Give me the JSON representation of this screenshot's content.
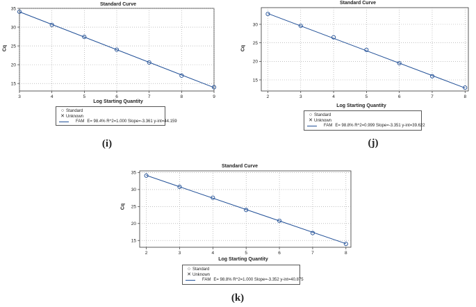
{
  "chart_data": [
    {
      "type": "scatter",
      "title": "Standard Curve",
      "xlabel": "Log Starting Quantity",
      "ylabel": "Cq",
      "xlim": [
        3,
        9
      ],
      "ylim": [
        13,
        35
      ],
      "xticks": [
        "3",
        "4",
        "5",
        "6",
        "7",
        "8",
        "9"
      ],
      "yticks": [
        "15",
        "20",
        "25",
        "30",
        "35"
      ],
      "grid": true,
      "series": [
        {
          "name": "Standard",
          "marker": "circle",
          "x": [
            3,
            4,
            5,
            6,
            7,
            8,
            9
          ],
          "y": [
            34.1,
            30.6,
            27.4,
            24.0,
            20.6,
            17.1,
            14.0
          ]
        }
      ],
      "fit": {
        "slope": -3.361,
        "intercept": 44.159
      },
      "legend": {
        "standard": "Standard",
        "unknown": "Unknown",
        "series": "FAM",
        "equation": "E= 98.4% R^2=1.000 Slope=-3.361 y-int=44.159"
      },
      "panel_label": "(i)"
    },
    {
      "type": "scatter",
      "title": "Standard Curve",
      "xlabel": "Log Starting Quantity",
      "ylabel": "Cq",
      "xlim": [
        1.8,
        8.1
      ],
      "ylim": [
        12,
        34.5
      ],
      "xticks": [
        "2",
        "3",
        "4",
        "5",
        "6",
        "7",
        "8"
      ],
      "yticks": [
        "15",
        "20",
        "25",
        "30"
      ],
      "grid": true,
      "series": [
        {
          "name": "Standard",
          "marker": "circle",
          "x": [
            2,
            3,
            4,
            5,
            6,
            7,
            8
          ],
          "y": [
            32.8,
            29.6,
            26.5,
            23.1,
            19.5,
            16.0,
            12.9
          ]
        }
      ],
      "fit": {
        "slope": -3.351,
        "intercept": 39.622
      },
      "legend": {
        "standard": "Standard",
        "unknown": "Unknown",
        "series": "FAM",
        "equation": "E= 98.8% R^2=0.999 Slope=-3.351 y-int=39.622"
      },
      "panel_label": "(j)"
    },
    {
      "type": "scatter",
      "title": "Standard Curve",
      "xlabel": "Log Starting Quantity",
      "ylabel": "Cq",
      "xlim": [
        1.8,
        8.15
      ],
      "ylim": [
        13,
        35.5
      ],
      "xticks": [
        "2",
        "3",
        "4",
        "5",
        "6",
        "7",
        "8"
      ],
      "yticks": [
        "15",
        "20",
        "25",
        "30",
        "35"
      ],
      "grid": true,
      "series": [
        {
          "name": "Standard",
          "marker": "circle",
          "x": [
            2,
            3,
            4,
            5,
            6,
            7,
            8
          ],
          "y": [
            34.1,
            30.8,
            27.6,
            24.0,
            20.8,
            17.2,
            14.0
          ]
        }
      ],
      "fit": {
        "slope": -3.352,
        "intercept": 40.875
      },
      "legend": {
        "standard": "Standard",
        "unknown": "Unknown",
        "series": "FAM",
        "equation": "E= 98.8% R^2=1.000 Slope=-3.352 y-int=40.875"
      },
      "panel_label": "(k)"
    }
  ]
}
